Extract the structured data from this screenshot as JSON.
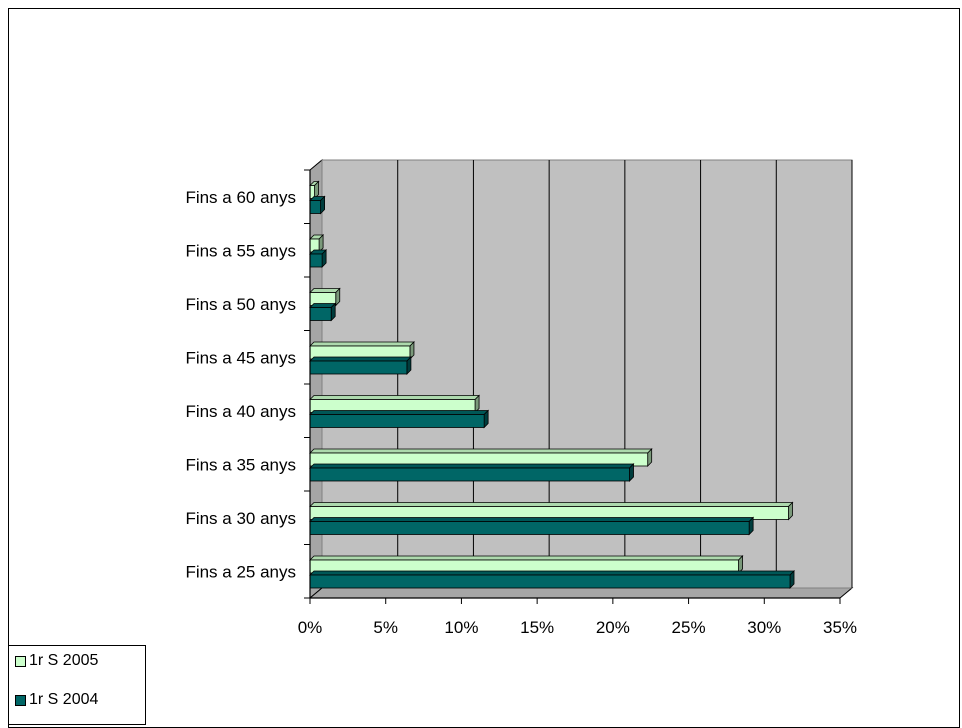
{
  "chart_data": {
    "type": "bar",
    "orientation": "horizontal",
    "categories": [
      "Fins a 25 anys",
      "Fins a 30 anys",
      "Fins a 35 anys",
      "Fins a 40 anys",
      "Fins a 45 anys",
      "Fins a 50 anys",
      "Fins a 55 anys",
      "Fins a 60 anys"
    ],
    "series": [
      {
        "name": "1r S 2005",
        "color": "#ccffcc",
        "values": [
          28.3,
          31.6,
          22.3,
          10.9,
          6.6,
          1.7,
          0.6,
          0.3
        ]
      },
      {
        "name": "1r S 2004",
        "color": "#006666",
        "values": [
          31.7,
          29.0,
          21.1,
          11.5,
          6.4,
          1.4,
          0.8,
          0.7
        ]
      }
    ],
    "xlim": [
      0,
      35
    ],
    "xticks": [
      "0%",
      "5%",
      "10%",
      "15%",
      "20%",
      "25%",
      "30%",
      "35%"
    ],
    "tick_step": 5,
    "grid": true,
    "legend_position": "bottom-left",
    "title": "",
    "xlabel": "",
    "ylabel": ""
  }
}
